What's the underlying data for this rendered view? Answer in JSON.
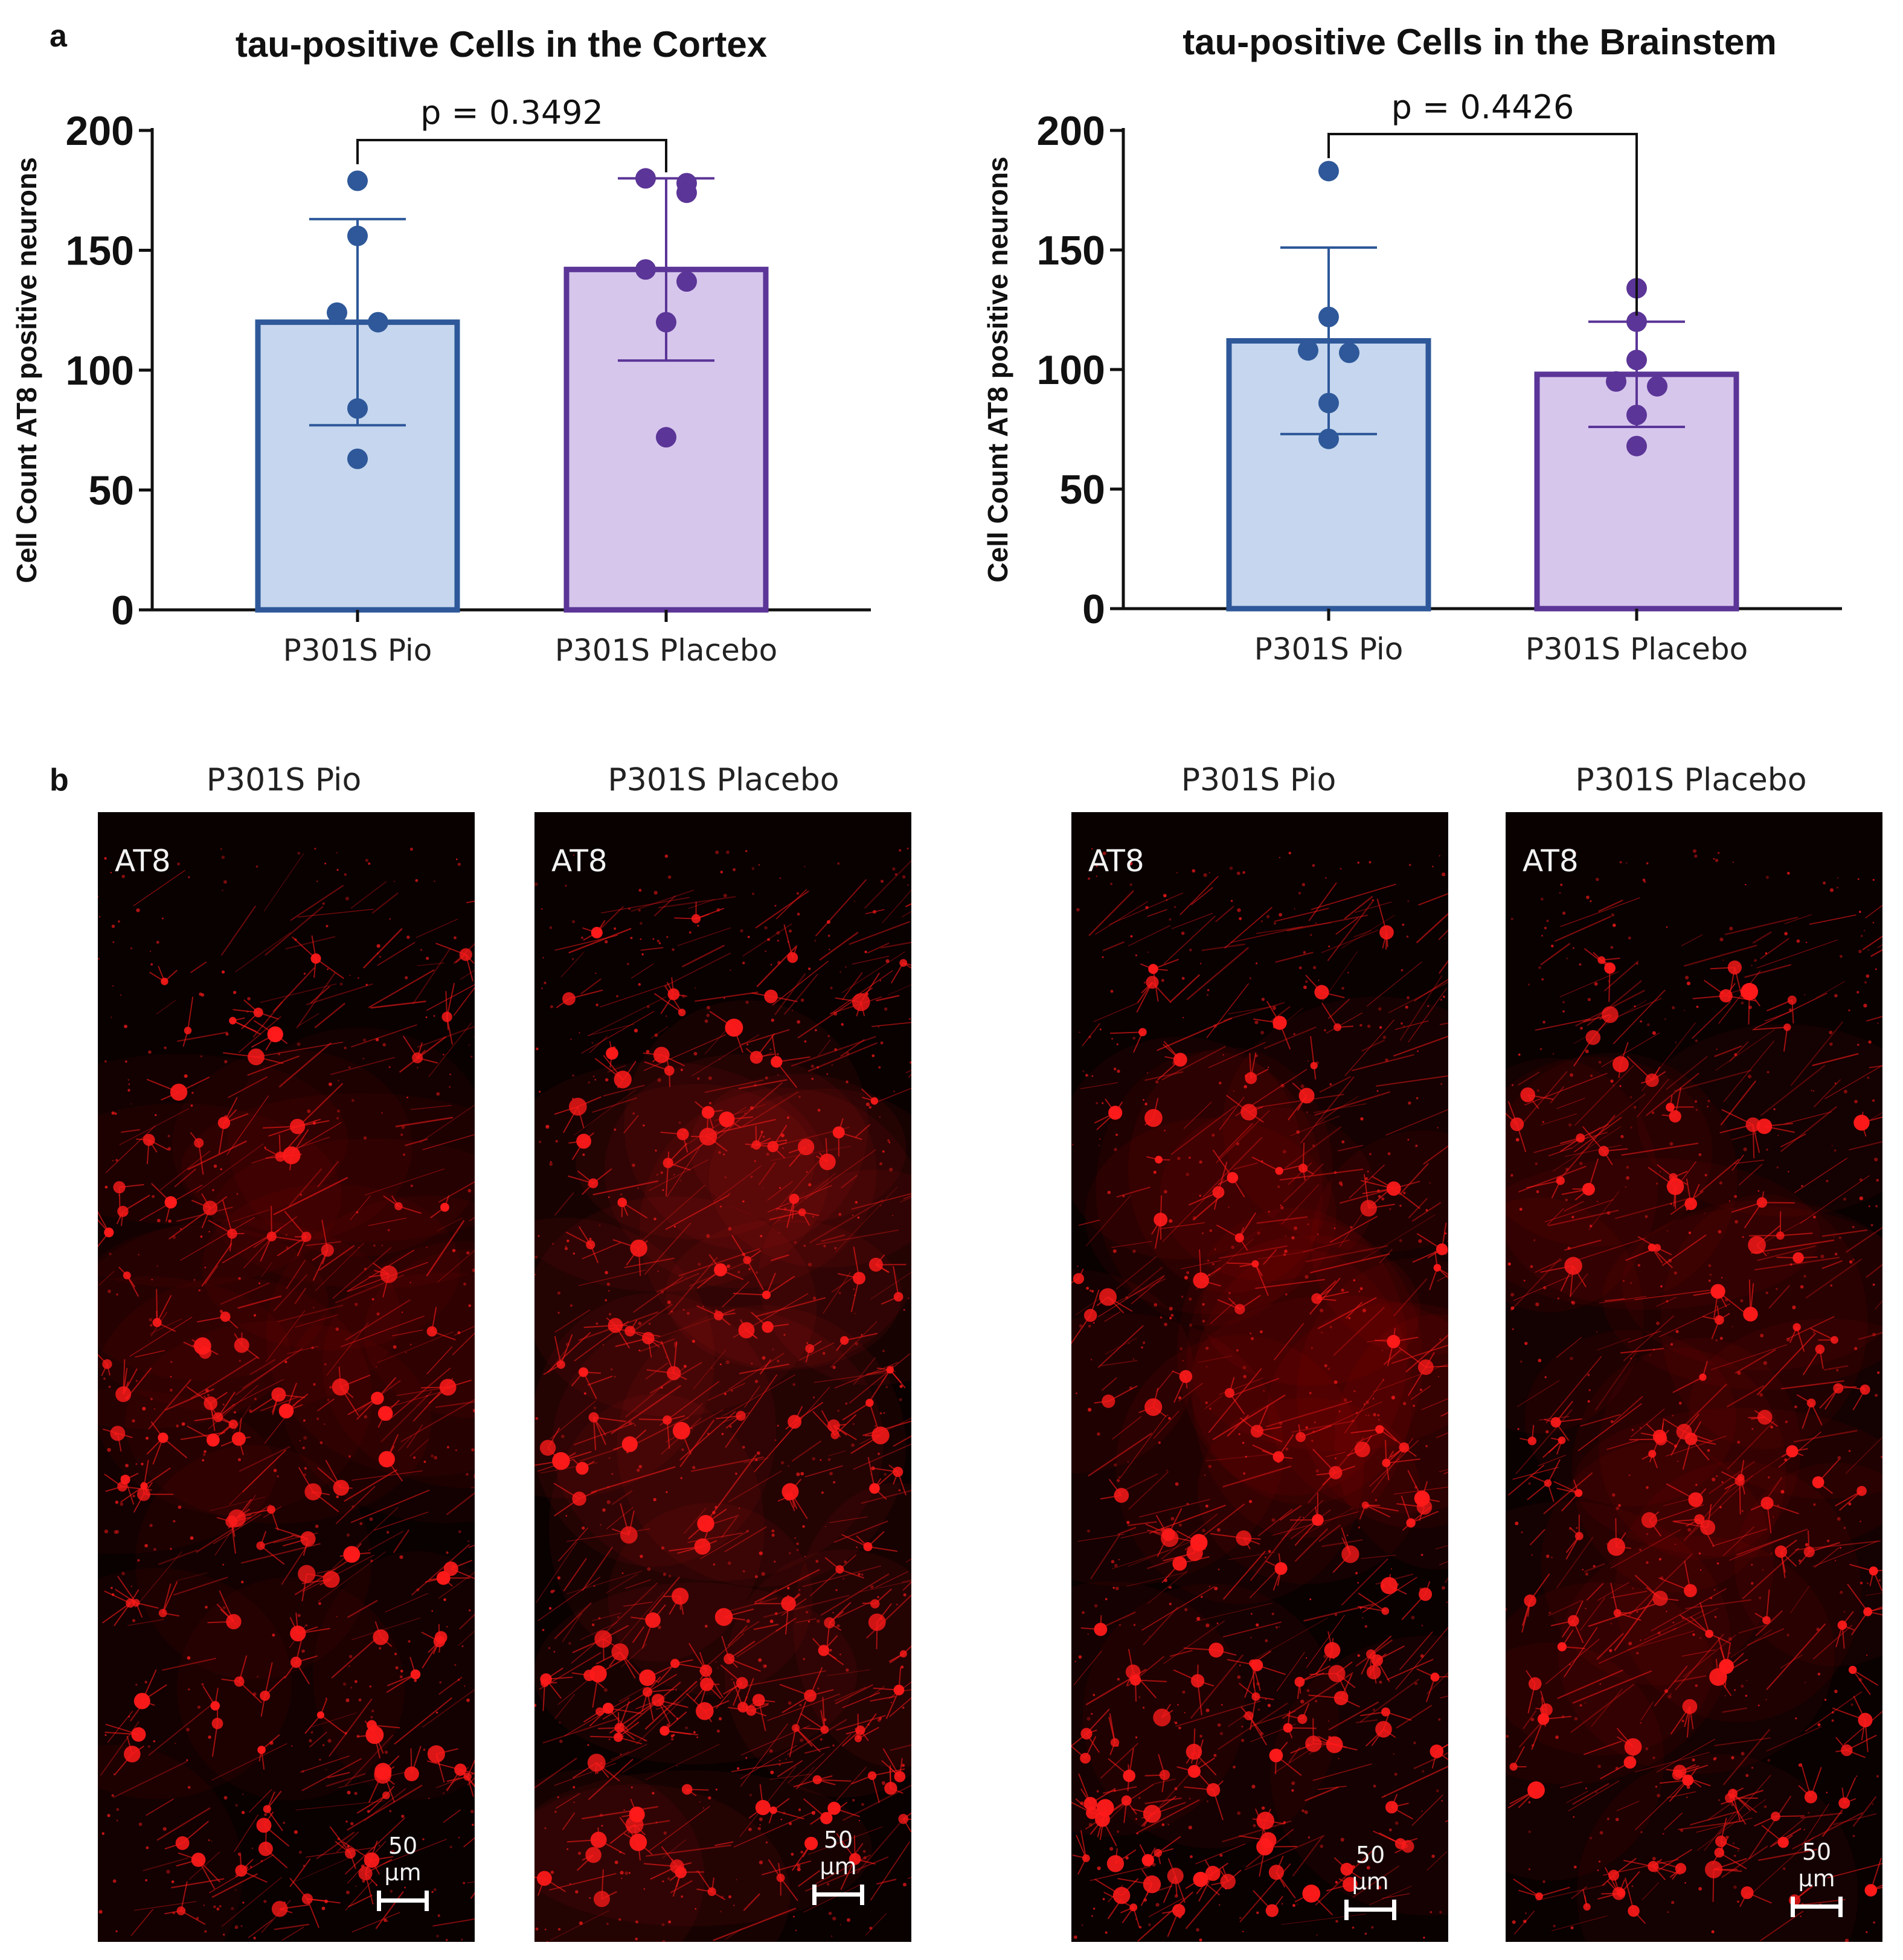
{
  "panel_labels": {
    "a": "a",
    "b": "b"
  },
  "chart_data": [
    {
      "type": "bar",
      "title": "tau-positive Cells in the Cortex",
      "xlabel": "",
      "ylabel": "Cell Count AT8 positive neurons",
      "ylim": [
        0,
        200
      ],
      "yticks": [
        0,
        50,
        100,
        150,
        200
      ],
      "categories": [
        "P301S Pio",
        "P301S Placebo"
      ],
      "values": [
        120,
        142
      ],
      "sd": [
        43,
        38
      ],
      "points": [
        [
          179,
          156,
          124,
          120,
          84,
          63
        ],
        [
          180,
          178,
          174,
          142,
          137,
          120,
          72
        ]
      ],
      "p_label": "p = 0.3492",
      "colors": {
        "fill": [
          "#c5d6ee",
          "#d6c6ec"
        ],
        "edge": [
          "#2e5899",
          "#5b3597"
        ]
      }
    },
    {
      "type": "bar",
      "title": "tau-positive Cells in the Brainstem",
      "xlabel": "",
      "ylabel": "Cell Count AT8 positive neurons",
      "ylim": [
        0,
        200
      ],
      "yticks": [
        0,
        50,
        100,
        150,
        200
      ],
      "categories": [
        "P301S Pio",
        "P301S Placebo"
      ],
      "values": [
        112,
        98
      ],
      "sd": [
        39,
        22
      ],
      "points": [
        [
          183,
          122,
          108,
          107,
          86,
          71
        ],
        [
          134,
          120,
          104,
          95,
          93,
          81,
          68
        ]
      ],
      "p_label": "p = 0.4426",
      "colors": {
        "fill": [
          "#c5d6ee",
          "#d6c6ec"
        ],
        "edge": [
          "#2e5899",
          "#5b3597"
        ]
      }
    }
  ],
  "images": [
    {
      "title": "P301S Pio",
      "stain": "AT8",
      "scale": "50 µm",
      "density": 0.9,
      "seed": 11
    },
    {
      "title": "P301S Placebo",
      "stain": "AT8",
      "scale": "50 µm",
      "density": 1.15,
      "seed": 23
    },
    {
      "title": "P301S Pio",
      "stain": "AT8",
      "scale": "50 µm",
      "density": 1.05,
      "seed": 37
    },
    {
      "title": "P301S Placebo",
      "stain": "AT8",
      "scale": "50 µm",
      "density": 0.95,
      "seed": 53
    }
  ],
  "colors": {
    "stain": "#ff1a1a",
    "background": "#090000"
  }
}
